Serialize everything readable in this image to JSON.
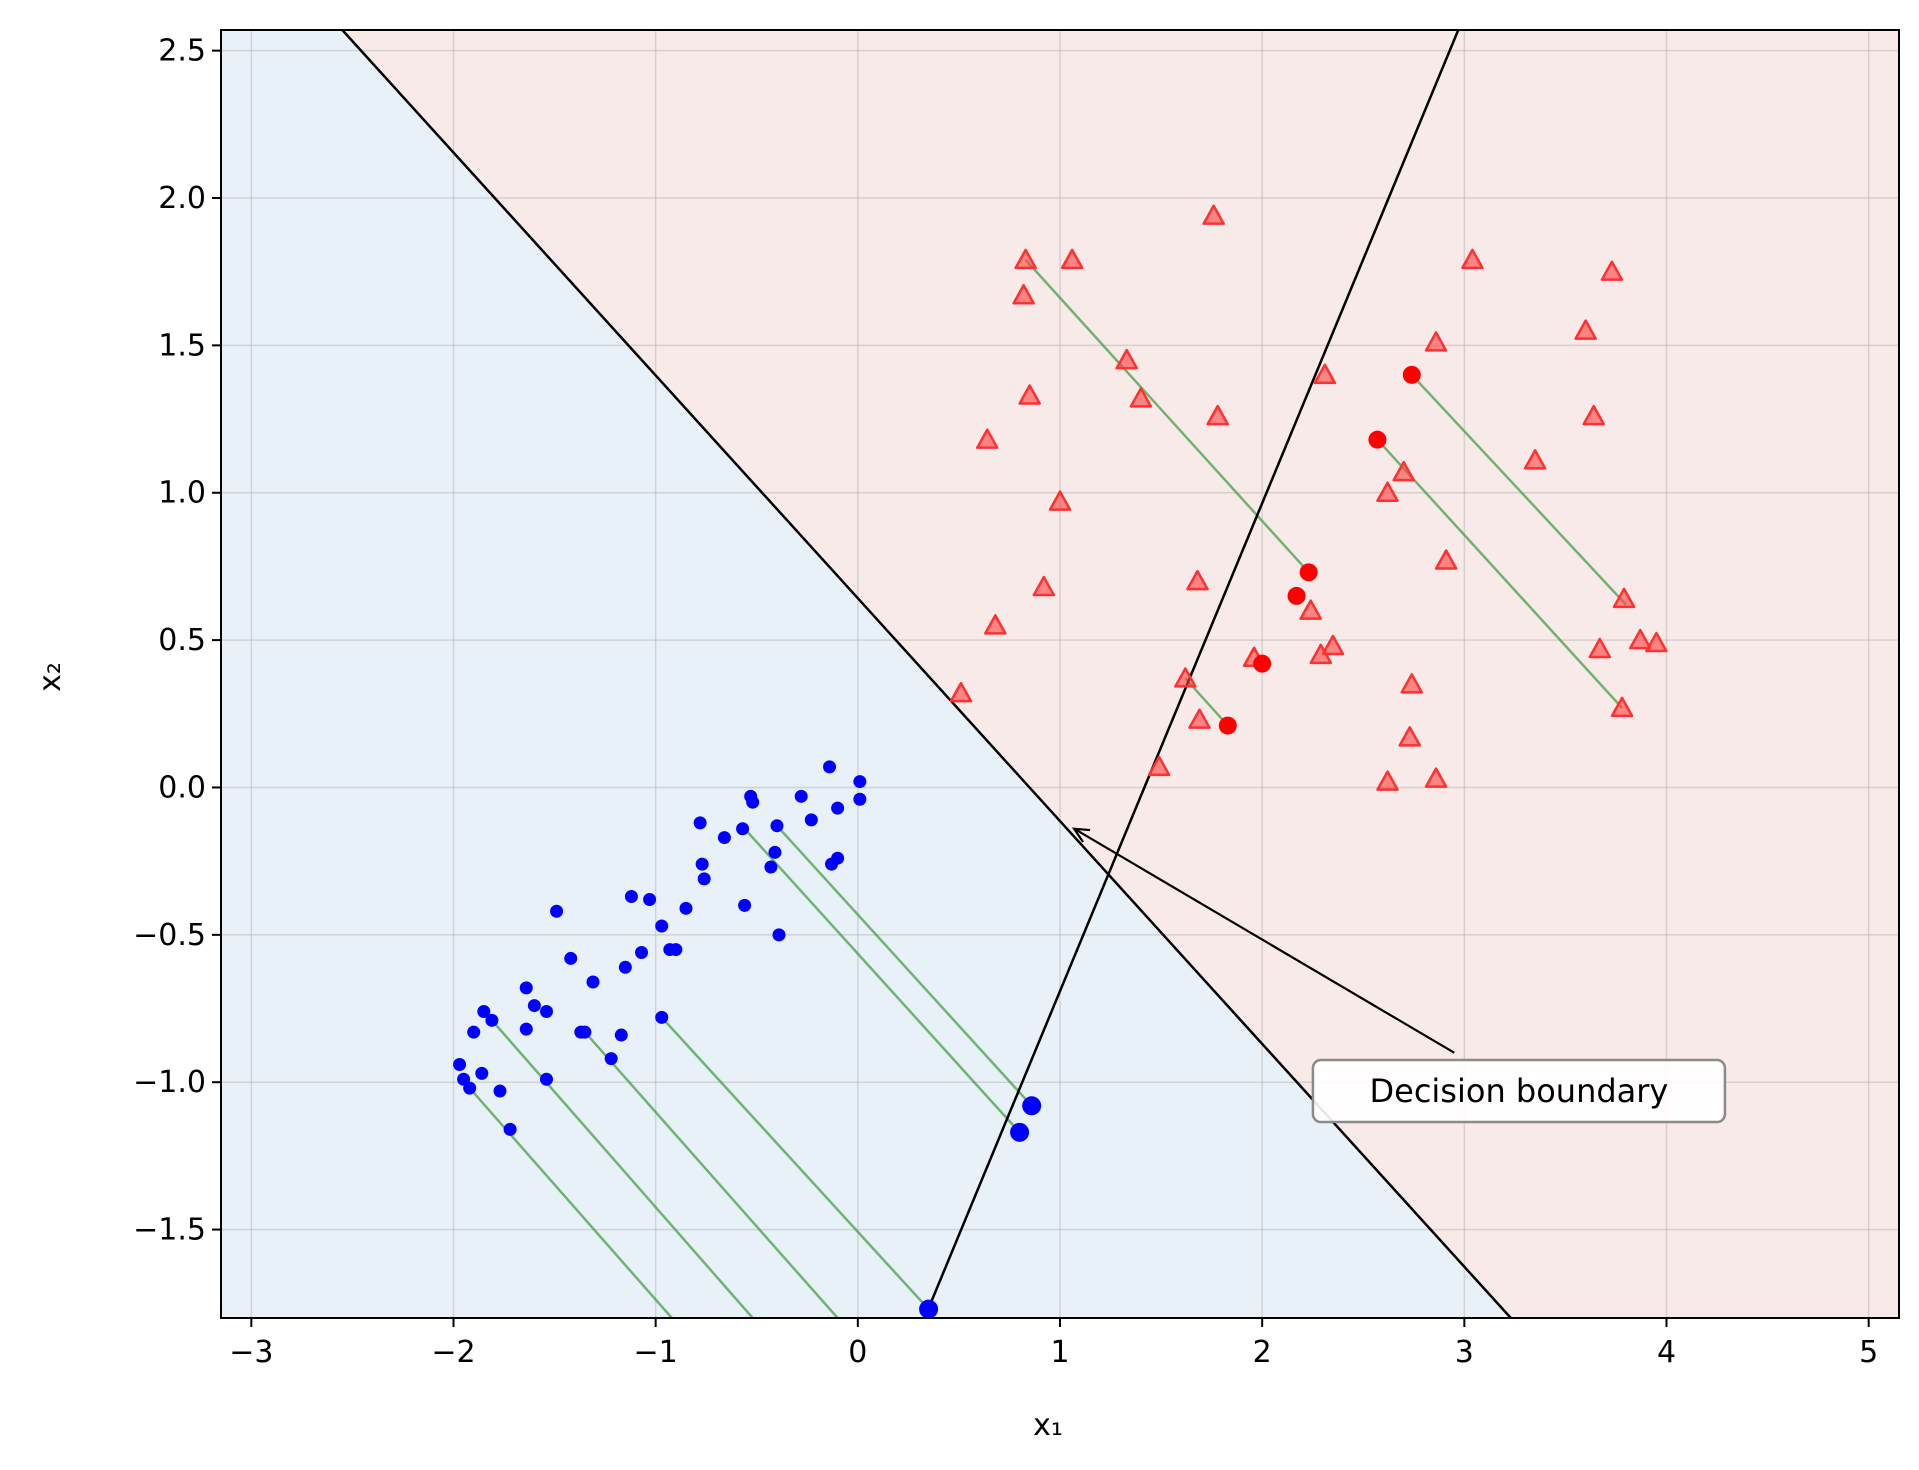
{
  "chart_data": {
    "type": "scatter",
    "title": "",
    "xlabel": "x₁",
    "ylabel": "x₂",
    "xlim": [
      -3.15,
      5.15
    ],
    "ylim": [
      -1.8,
      2.57
    ],
    "xticks": [
      -3,
      -2,
      -1,
      0,
      1,
      2,
      3,
      4,
      5
    ],
    "xtick_labels": [
      "−3",
      "−2",
      "−1",
      "0",
      "1",
      "2",
      "3",
      "4",
      "5"
    ],
    "yticks": [
      -1.5,
      -1.0,
      -0.5,
      0.0,
      0.5,
      1.0,
      1.5,
      2.0,
      2.5
    ],
    "ytick_labels": [
      "−1.5",
      "−1.0",
      "−0.5",
      "0.0",
      "0.5",
      "1.0",
      "1.5",
      "2.0",
      "2.5"
    ],
    "grid": true,
    "region_colors": {
      "blue_region": "#e8f0f8",
      "red_region": "#f8eae8"
    },
    "decision_boundary": {
      "points": [
        [
          -2.55,
          2.57
        ],
        [
          3.23,
          -1.8
        ]
      ],
      "color": "#000000"
    },
    "projection_line": {
      "points": [
        [
          0.33,
          -1.8
        ],
        [
          2.97,
          2.57
        ]
      ],
      "color": "#000000"
    },
    "class_blue": {
      "color": "#0000ff",
      "marker": "circle",
      "points": [
        [
          0.01,
          0.02
        ],
        [
          0.01,
          -0.04
        ],
        [
          -0.1,
          -0.07
        ],
        [
          -0.14,
          0.07
        ],
        [
          -0.1,
          -0.24
        ],
        [
          -0.13,
          -0.26
        ],
        [
          -0.23,
          -0.11
        ],
        [
          -0.28,
          -0.03
        ],
        [
          -0.4,
          -0.13
        ],
        [
          -0.41,
          -0.22
        ],
        [
          -0.43,
          -0.27
        ],
        [
          -0.39,
          -0.5
        ],
        [
          -0.53,
          -0.03
        ],
        [
          -0.52,
          -0.05
        ],
        [
          -0.57,
          -0.14
        ],
        [
          -0.56,
          -0.4
        ],
        [
          -0.66,
          -0.17
        ],
        [
          -0.77,
          -0.26
        ],
        [
          -0.78,
          -0.12
        ],
        [
          -0.76,
          -0.31
        ],
        [
          -0.85,
          -0.41
        ],
        [
          -0.9,
          -0.55
        ],
        [
          -0.93,
          -0.55
        ],
        [
          -0.97,
          -0.47
        ],
        [
          -0.97,
          -0.78
        ],
        [
          -1.03,
          -0.38
        ],
        [
          -1.07,
          -0.56
        ],
        [
          -1.12,
          -0.37
        ],
        [
          -1.15,
          -0.61
        ],
        [
          -1.17,
          -0.84
        ],
        [
          -1.22,
          -0.92
        ],
        [
          -1.31,
          -0.66
        ],
        [
          -1.35,
          -0.83
        ],
        [
          -1.37,
          -0.83
        ],
        [
          -1.42,
          -0.58
        ],
        [
          -1.49,
          -0.42
        ],
        [
          -1.54,
          -0.76
        ],
        [
          -1.54,
          -0.99
        ],
        [
          -1.6,
          -0.74
        ],
        [
          -1.64,
          -0.68
        ],
        [
          -1.64,
          -0.82
        ],
        [
          -1.72,
          -1.16
        ],
        [
          -1.77,
          -1.03
        ],
        [
          -1.81,
          -0.79
        ],
        [
          -1.85,
          -0.76
        ],
        [
          -1.86,
          -0.97
        ],
        [
          -1.9,
          -0.83
        ],
        [
          -1.92,
          -1.02
        ],
        [
          -1.95,
          -0.99
        ],
        [
          -1.97,
          -0.94
        ]
      ],
      "projections": [
        [
          0.35,
          -1.77
        ],
        [
          0.8,
          -1.17
        ],
        [
          0.86,
          -1.08
        ]
      ]
    },
    "class_red": {
      "color": "#ff4040",
      "marker": "triangle",
      "points": [
        [
          1.76,
          1.94
        ],
        [
          3.04,
          1.79
        ],
        [
          0.83,
          1.79
        ],
        [
          1.06,
          1.79
        ],
        [
          0.82,
          1.67
        ],
        [
          3.73,
          1.75
        ],
        [
          3.6,
          1.55
        ],
        [
          2.86,
          1.51
        ],
        [
          1.33,
          1.45
        ],
        [
          2.31,
          1.4
        ],
        [
          0.85,
          1.33
        ],
        [
          1.4,
          1.32
        ],
        [
          1.78,
          1.26
        ],
        [
          3.64,
          1.26
        ],
        [
          0.64,
          1.18
        ],
        [
          3.35,
          1.11
        ],
        [
          2.7,
          1.07
        ],
        [
          2.62,
          1.0
        ],
        [
          1.0,
          0.97
        ],
        [
          2.91,
          0.77
        ],
        [
          1.68,
          0.7
        ],
        [
          0.92,
          0.68
        ],
        [
          3.79,
          0.64
        ],
        [
          2.24,
          0.6
        ],
        [
          0.68,
          0.55
        ],
        [
          3.87,
          0.5
        ],
        [
          3.95,
          0.49
        ],
        [
          2.35,
          0.48
        ],
        [
          3.67,
          0.47
        ],
        [
          1.96,
          0.44
        ],
        [
          2.29,
          0.45
        ],
        [
          1.62,
          0.37
        ],
        [
          2.74,
          0.35
        ],
        [
          0.51,
          0.32
        ],
        [
          3.78,
          0.27
        ],
        [
          1.69,
          0.23
        ],
        [
          2.73,
          0.17
        ],
        [
          1.49,
          0.07
        ],
        [
          2.62,
          0.02
        ],
        [
          2.86,
          0.03
        ]
      ],
      "projections": [
        [
          2.74,
          1.4
        ],
        [
          2.57,
          1.18
        ],
        [
          2.23,
          0.73
        ],
        [
          2.17,
          0.65
        ],
        [
          2.0,
          0.42
        ],
        [
          1.83,
          0.21
        ]
      ]
    },
    "connectors": {
      "color": "#3a9a3a",
      "segments": [
        [
          [
            -0.4,
            -0.13
          ],
          [
            0.86,
            -1.08
          ]
        ],
        [
          [
            -0.56,
            -0.14
          ],
          [
            0.8,
            -1.17
          ]
        ],
        [
          [
            -0.97,
            -0.78
          ],
          [
            0.35,
            -1.77
          ]
        ],
        [
          [
            -1.35,
            -0.83
          ],
          [
            -0.1,
            -1.8
          ]
        ],
        [
          [
            -1.81,
            -0.79
          ],
          [
            -0.52,
            -1.8
          ]
        ],
        [
          [
            -1.92,
            -1.02
          ],
          [
            -0.92,
            -1.8
          ]
        ],
        [
          [
            0.83,
            1.79
          ],
          [
            2.23,
            0.73
          ]
        ],
        [
          [
            2.74,
            1.4
          ],
          [
            3.8,
            0.62
          ]
        ],
        [
          [
            2.57,
            1.18
          ],
          [
            3.78,
            0.27
          ]
        ],
        [
          [
            1.62,
            0.37
          ],
          [
            1.83,
            0.21
          ]
        ]
      ]
    },
    "annotation": {
      "text": "Decision boundary",
      "target": [
        1.07,
        -0.14
      ],
      "arrow_tail": [
        2.95,
        -0.9
      ],
      "box_center": [
        3.27,
        -1.03
      ]
    }
  }
}
